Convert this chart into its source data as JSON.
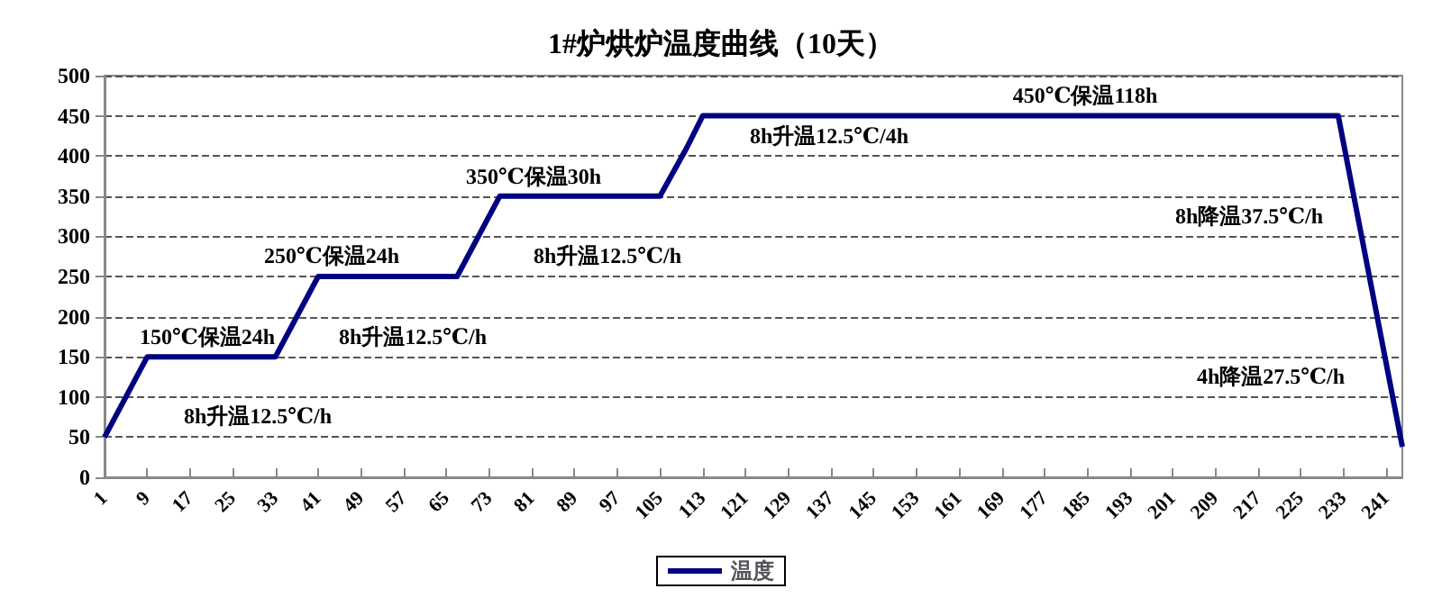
{
  "chart_data": {
    "type": "line",
    "title": "1#炉烘炉温度曲线（10天）",
    "x": [
      1,
      9,
      33,
      41,
      67,
      75,
      105,
      110,
      113,
      232,
      244
    ],
    "series": [
      {
        "name": "温度",
        "color": "#000080",
        "values": [
          50,
          150,
          150,
          250,
          250,
          350,
          350,
          410,
          450,
          450,
          38
        ]
      }
    ],
    "xlim": [
      1,
      244
    ],
    "xticks": [
      1,
      9,
      17,
      25,
      33,
      41,
      49,
      57,
      65,
      73,
      81,
      89,
      97,
      105,
      113,
      121,
      129,
      137,
      145,
      153,
      161,
      169,
      177,
      185,
      193,
      201,
      209,
      217,
      225,
      233,
      241
    ],
    "ylim": [
      0,
      500
    ],
    "yticks": [
      0,
      50,
      100,
      150,
      200,
      250,
      300,
      350,
      400,
      450,
      500
    ],
    "grid": "y",
    "legend": "bottom",
    "marker": "none",
    "line_style": "solid",
    "annotations": [
      "150℃保温24h",
      "8h升温12.5℃/h",
      "250℃保温24h",
      "8h升温12.5℃/h",
      "350℃保温30h",
      "8h升温12.5℃/h",
      "8h升温12.5℃/4h",
      "450℃保温118h",
      "8h降温37.5℃/h",
      "4h降温27.5℃/h"
    ]
  }
}
